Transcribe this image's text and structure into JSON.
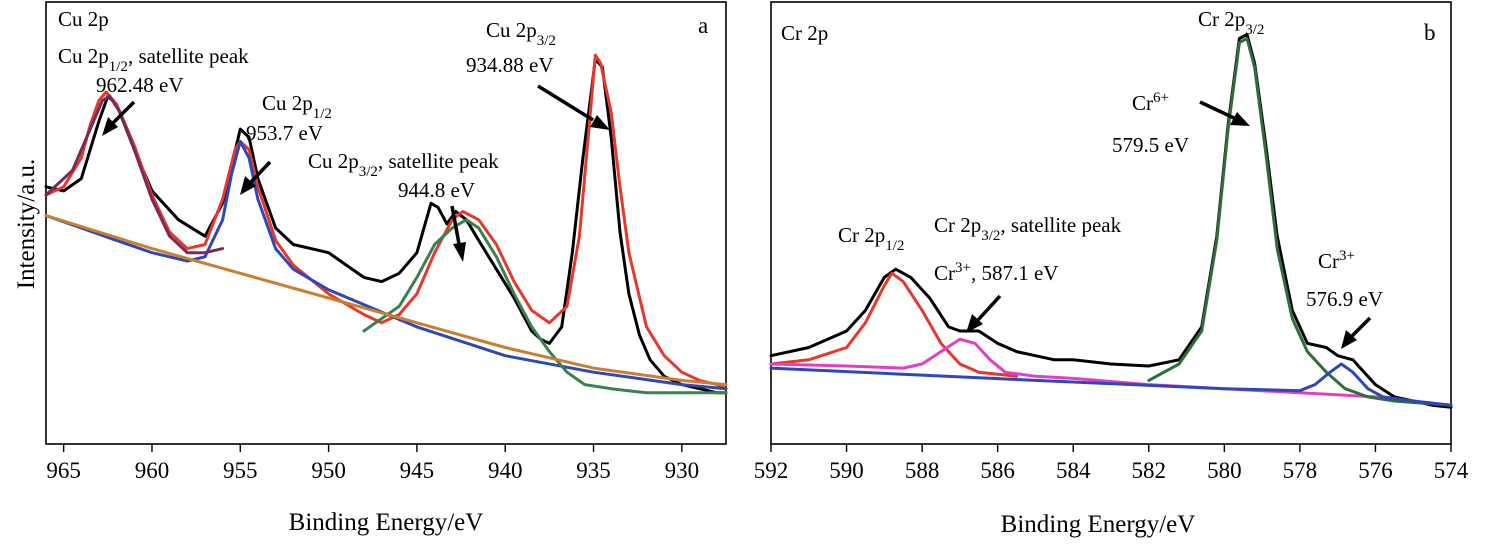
{
  "chart_data": [
    {
      "type": "line",
      "panel": "a",
      "title": "Cu 2p",
      "xlabel": "Binding Energy/eV",
      "ylabel": "Intensity/a.u.",
      "xlim": [
        966,
        927.5
      ],
      "ylim": [
        0,
        100
      ],
      "x_reversed": true,
      "xticks": [
        965,
        960,
        955,
        950,
        945,
        940,
        935,
        930
      ],
      "grid": false,
      "series": [
        {
          "color": "#000000",
          "points": [
            [
              966,
              60
            ],
            [
              965,
              59
            ],
            [
              964,
              62
            ],
            [
              963,
              76
            ],
            [
              962.5,
              82
            ],
            [
              962,
              80
            ],
            [
              961,
              69
            ],
            [
              960,
              59
            ],
            [
              958.5,
              52
            ],
            [
              957,
              48
            ],
            [
              956,
              56
            ],
            [
              955,
              74
            ],
            [
              954.5,
              72
            ],
            [
              954,
              62
            ],
            [
              953,
              50
            ],
            [
              952,
              46
            ],
            [
              951,
              45
            ],
            [
              950,
              44
            ],
            [
              949,
              41
            ],
            [
              948,
              38
            ],
            [
              947,
              37
            ],
            [
              946,
              39
            ],
            [
              945,
              44
            ],
            [
              944.2,
              56
            ],
            [
              943.8,
              55
            ],
            [
              943.3,
              51
            ],
            [
              942.8,
              54
            ],
            [
              942.2,
              52
            ],
            [
              941.5,
              47
            ],
            [
              940.5,
              40
            ],
            [
              939.5,
              33
            ],
            [
              938.5,
              25
            ],
            [
              938,
              23
            ],
            [
              937.5,
              22
            ],
            [
              936.8,
              26
            ],
            [
              936.2,
              44
            ],
            [
              935.6,
              67
            ],
            [
              935.1,
              84
            ],
            [
              934.9,
              91
            ],
            [
              934.5,
              89
            ],
            [
              934,
              72
            ],
            [
              933.5,
              49
            ],
            [
              933,
              34
            ],
            [
              932.4,
              24
            ],
            [
              931.8,
              18
            ],
            [
              931,
              14
            ],
            [
              930,
              12
            ],
            [
              929,
              11
            ],
            [
              928,
              10
            ],
            [
              927.5,
              10
            ]
          ]
        },
        {
          "color": "#e8382c",
          "points": [
            [
              966,
              58
            ],
            [
              965,
              60
            ],
            [
              964,
              67
            ],
            [
              963.5,
              75
            ],
            [
              963,
              81
            ],
            [
              962.6,
              83
            ],
            [
              962,
              80
            ],
            [
              961,
              70
            ],
            [
              960,
              58
            ],
            [
              959,
              49
            ],
            [
              958,
              45
            ],
            [
              957,
              46
            ],
            [
              956,
              57
            ],
            [
              955.3,
              69
            ],
            [
              955,
              71
            ],
            [
              954.5,
              69
            ],
            [
              954,
              60
            ],
            [
              953,
              47
            ],
            [
              952,
              41
            ],
            [
              950,
              34
            ],
            [
              948,
              29
            ],
            [
              947,
              27
            ],
            [
              946,
              29
            ],
            [
              945,
              34
            ],
            [
              944,
              44
            ],
            [
              943,
              52
            ],
            [
              942.4,
              54
            ],
            [
              941.5,
              52
            ],
            [
              940.5,
              46
            ],
            [
              939.5,
              37
            ],
            [
              938.5,
              30
            ],
            [
              937.5,
              27
            ],
            [
              936.5,
              31
            ],
            [
              935.8,
              48
            ],
            [
              935.2,
              77
            ],
            [
              934.9,
              92
            ],
            [
              934.6,
              90
            ],
            [
              934,
              78
            ],
            [
              933.5,
              60
            ],
            [
              933,
              44
            ],
            [
              932,
              26
            ],
            [
              931,
              19
            ],
            [
              930,
              15
            ],
            [
              929,
              13
            ],
            [
              928,
              12
            ],
            [
              927.5,
              11
            ]
          ]
        },
        {
          "color": "#2e48b8",
          "points": [
            [
              966,
              53
            ],
            [
              964,
              50
            ],
            [
              962,
              47
            ],
            [
              960,
              44
            ],
            [
              958,
              42
            ],
            [
              957,
              43
            ],
            [
              956,
              52
            ],
            [
              955.5,
              63
            ],
            [
              955,
              71
            ],
            [
              954.5,
              67
            ],
            [
              954,
              57
            ],
            [
              953,
              45
            ],
            [
              952,
              40
            ],
            [
              950,
              35
            ],
            [
              945,
              26
            ],
            [
              940,
              19
            ],
            [
              935,
              15
            ],
            [
              930,
              12
            ],
            [
              927.5,
              11
            ]
          ]
        },
        {
          "color": "#7a2a5a",
          "points": [
            [
              966,
              58
            ],
            [
              964.5,
              64
            ],
            [
              963.5,
              74
            ],
            [
              962.8,
              81
            ],
            [
              962.4,
              82
            ],
            [
              961.8,
              78
            ],
            [
              961,
              69
            ],
            [
              960,
              57
            ],
            [
              959,
              48
            ],
            [
              958,
              44
            ],
            [
              957,
              44
            ],
            [
              956,
              45
            ]
          ]
        },
        {
          "color": "#3a8050",
          "points": [
            [
              948,
              25
            ],
            [
              946,
              31
            ],
            [
              945,
              38
            ],
            [
              944,
              46
            ],
            [
              943,
              50
            ],
            [
              942.2,
              52
            ],
            [
              941.5,
              50
            ],
            [
              940.5,
              43
            ],
            [
              939.5,
              34
            ],
            [
              938.5,
              26
            ],
            [
              937.5,
              20
            ],
            [
              936.5,
              15
            ],
            [
              935.5,
              12
            ],
            [
              934,
              11
            ],
            [
              932,
              10
            ],
            [
              929,
              10
            ],
            [
              927.5,
              10
            ]
          ]
        },
        {
          "color": "#c88030",
          "points": [
            [
              966,
              53
            ],
            [
              963,
              49
            ],
            [
              960,
              45
            ],
            [
              955,
              39
            ],
            [
              950,
              33
            ],
            [
              945,
              27
            ],
            [
              940,
              21
            ],
            [
              935,
              16
            ],
            [
              930,
              13
            ],
            [
              927.5,
              12
            ]
          ]
        }
      ],
      "annotations": [
        {
          "text": "Cu 2p1/2, satellite peak",
          "lines": [
            "Cu 2p",
            "1/2",
            ", satellite peak"
          ],
          "sub_line2": "962.48 eV",
          "x": 962.48
        },
        {
          "text": "Cu 2p1/2 953.7 eV",
          "x": 955
        },
        {
          "text": "Cu 2p3/2, satellite peak 944.8 eV",
          "x": 942.5
        },
        {
          "text": "Cu 2p3/2 934.88 eV",
          "x": 934.88
        }
      ],
      "panel_letter": "a"
    },
    {
      "type": "line",
      "panel": "b",
      "title": "Cr 2p",
      "xlabel": "Binding Energy/eV",
      "xlim": [
        592,
        574
      ],
      "ylim": [
        0,
        100
      ],
      "x_reversed": true,
      "xticks": [
        592,
        590,
        588,
        586,
        584,
        582,
        580,
        578,
        576,
        574
      ],
      "grid": false,
      "series": [
        {
          "color": "#000000",
          "points": [
            [
              592,
              19
            ],
            [
              591,
              21
            ],
            [
              590,
              25
            ],
            [
              589.5,
              30
            ],
            [
              589,
              38
            ],
            [
              588.7,
              40
            ],
            [
              588.3,
              38
            ],
            [
              587.8,
              33
            ],
            [
              587.3,
              26
            ],
            [
              587,
              25
            ],
            [
              586.5,
              25
            ],
            [
              586,
              22
            ],
            [
              585.5,
              20
            ],
            [
              585,
              19
            ],
            [
              584.5,
              18
            ],
            [
              584,
              18
            ],
            [
              583,
              17
            ],
            [
              582,
              16.5
            ],
            [
              581.2,
              18
            ],
            [
              580.6,
              26
            ],
            [
              580.2,
              48
            ],
            [
              579.9,
              75
            ],
            [
              579.6,
              96
            ],
            [
              579.4,
              97
            ],
            [
              579.2,
              90
            ],
            [
              578.9,
              70
            ],
            [
              578.6,
              48
            ],
            [
              578.2,
              30
            ],
            [
              577.8,
              22
            ],
            [
              577.3,
              21
            ],
            [
              577,
              19
            ],
            [
              576.6,
              18
            ],
            [
              576.3,
              15
            ],
            [
              576,
              12
            ],
            [
              575.5,
              9
            ],
            [
              575,
              8
            ],
            [
              574.5,
              7
            ],
            [
              574,
              6.5
            ]
          ]
        },
        {
          "color": "#e8382c",
          "points": [
            [
              592,
              17
            ],
            [
              591,
              18
            ],
            [
              590,
              21
            ],
            [
              589.5,
              27
            ],
            [
              589,
              36
            ],
            [
              588.8,
              39
            ],
            [
              588.5,
              37
            ],
            [
              588,
              30
            ],
            [
              587.5,
              22
            ],
            [
              587,
              17
            ],
            [
              586.5,
              15
            ],
            [
              586,
              14.5
            ],
            [
              585.5,
              14
            ]
          ]
        },
        {
          "color": "#e040c8",
          "points": [
            [
              592,
              17
            ],
            [
              590,
              16.5
            ],
            [
              588.5,
              16
            ],
            [
              588,
              17
            ],
            [
              587.5,
              20
            ],
            [
              587,
              23
            ],
            [
              586.6,
              22
            ],
            [
              586.2,
              18
            ],
            [
              585.8,
              15
            ],
            [
              585,
              14
            ],
            [
              584,
              13.5
            ],
            [
              582,
              12
            ],
            [
              580,
              11
            ],
            [
              578,
              10
            ],
            [
              576,
              9
            ],
            [
              574,
              7
            ]
          ]
        },
        {
          "color": "#2f6e3a",
          "points": [
            [
              582,
              13
            ],
            [
              581.2,
              17
            ],
            [
              580.6,
              25
            ],
            [
              580.2,
              47
            ],
            [
              579.9,
              74
            ],
            [
              579.6,
              95
            ],
            [
              579.4,
              96
            ],
            [
              579.2,
              89
            ],
            [
              578.9,
              68
            ],
            [
              578.6,
              45
            ],
            [
              578.2,
              28
            ],
            [
              577.8,
              20
            ],
            [
              577.3,
              15
            ],
            [
              576.8,
              11
            ],
            [
              576.2,
              9
            ],
            [
              575.5,
              8
            ],
            [
              574,
              7
            ]
          ]
        },
        {
          "color": "#2e48b8",
          "points": [
            [
              592,
              16
            ],
            [
              585,
              13
            ],
            [
              580,
              11
            ],
            [
              578,
              10.5
            ],
            [
              577.6,
              12
            ],
            [
              577.2,
              15
            ],
            [
              576.9,
              17
            ],
            [
              576.6,
              15
            ],
            [
              576.2,
              11
            ],
            [
              575.8,
              9
            ],
            [
              575,
              8
            ],
            [
              574,
              7
            ]
          ]
        }
      ],
      "annotations": [
        {
          "text": "Cr 2p1/2",
          "x": 588.8
        },
        {
          "text": "Cr 2p3/2, satellite peak",
          "x": 587
        },
        {
          "text": "Cr3+, 587.1 eV",
          "x": 587.1
        },
        {
          "text": "Cr 2p3/2",
          "x": 579.5
        },
        {
          "text": "Cr6+ 579.5 eV",
          "x": 579.5
        },
        {
          "text": "Cr3+ 576.9 eV",
          "x": 576.9
        }
      ],
      "panel_letter": "b"
    }
  ]
}
